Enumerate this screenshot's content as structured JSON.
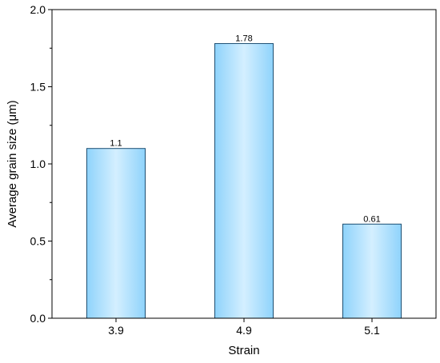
{
  "chart_data": {
    "type": "bar",
    "categories": [
      "3.9",
      "4.9",
      "5.1"
    ],
    "values": [
      1.1,
      1.78,
      0.61
    ],
    "data_labels": [
      "1.1",
      "1.78",
      "0.61"
    ],
    "xlabel": "Strain",
    "ylabel": "Average grain size (μm)",
    "ylim": [
      0,
      2.0
    ],
    "yticks": [
      0.0,
      0.5,
      1.0,
      1.5,
      2.0
    ],
    "ytick_labels": [
      "0.0",
      "0.5",
      "1.0",
      "1.5",
      "2.0"
    ],
    "grid": false,
    "bar_color_edge": "#8fd3fb",
    "bar_color_center": "#d4efff",
    "bar_outline": "#1c4e73"
  }
}
